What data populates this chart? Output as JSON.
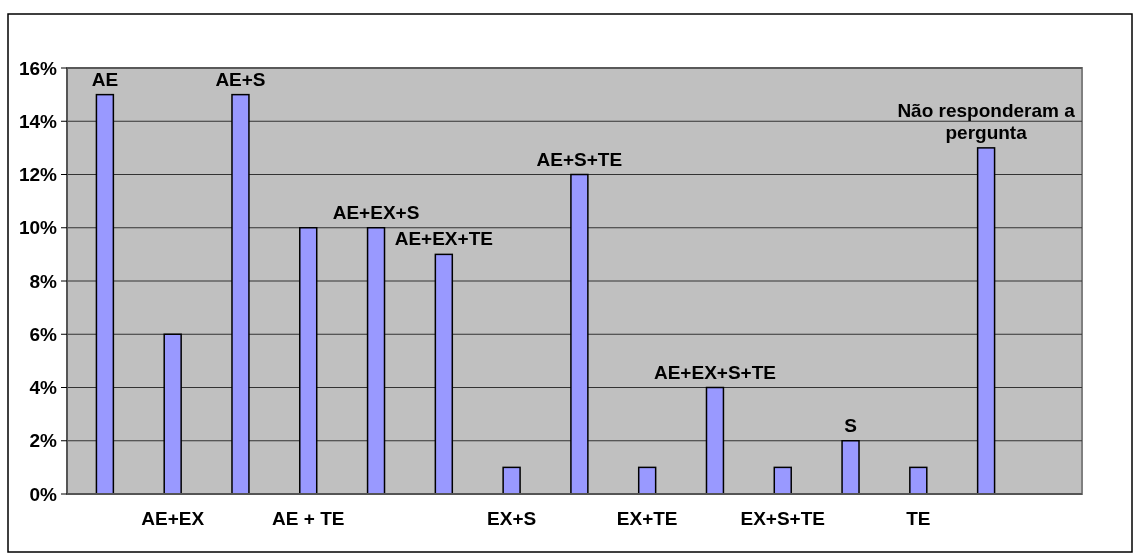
{
  "chart_data": {
    "type": "bar",
    "categories": [
      null,
      "AE+EX",
      null,
      "AE + TE",
      null,
      null,
      "EX+S",
      null,
      "EX+TE",
      null,
      "EX+S+TE",
      null,
      "TE",
      null
    ],
    "values": [
      15,
      6,
      15,
      10,
      10,
      9,
      1,
      12,
      1,
      4,
      1,
      2,
      1,
      13
    ],
    "value_labels": [
      "AE",
      null,
      "AE+S",
      null,
      "AE+EX+S",
      "AE+EX+TE",
      null,
      "AE+S+TE",
      null,
      "AE+EX+S+TE",
      null,
      "S",
      null,
      "Não responderam a pergunta"
    ],
    "color": "#9999ff",
    "ylim": [
      0,
      16
    ],
    "yticks": [
      {
        "value": 0,
        "label": "0%"
      },
      {
        "value": 2,
        "label": "2%"
      },
      {
        "value": 4,
        "label": "4%"
      },
      {
        "value": 6,
        "label": "6%"
      },
      {
        "value": 8,
        "label": "8%"
      },
      {
        "value": 10,
        "label": "10%"
      },
      {
        "value": 12,
        "label": "12%"
      },
      {
        "value": 14,
        "label": "14%"
      },
      {
        "value": 16,
        "label": "16%"
      }
    ],
    "grid": "y"
  }
}
